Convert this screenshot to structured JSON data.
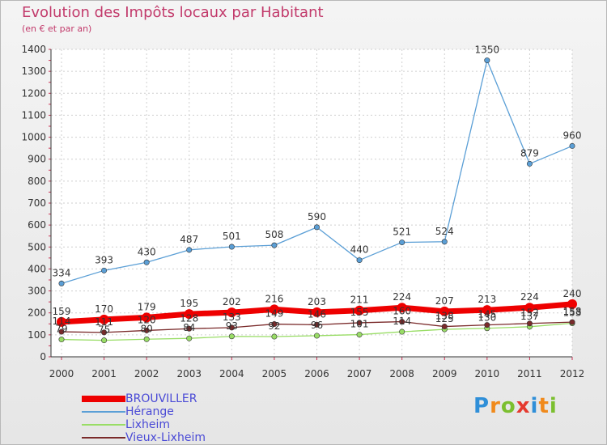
{
  "header": {
    "title": "Evolution des Impôts locaux par Habitant",
    "subtitle": "(en € et par an)"
  },
  "logo": {
    "text": "Proxiti",
    "letters": [
      "P",
      "r",
      "o",
      "x",
      "i",
      "t",
      "i"
    ],
    "colors": [
      "#2f8fd8",
      "#f08a1c",
      "#7bbf2f",
      "#e53a2f",
      "#2f8fd8",
      "#f08a1c",
      "#7bbf2f"
    ]
  },
  "chart_data": {
    "type": "line",
    "x": [
      "2000",
      "2001",
      "2002",
      "2003",
      "2004",
      "2005",
      "2006",
      "2007",
      "2008",
      "2009",
      "2010",
      "2011",
      "2012"
    ],
    "ylim": [
      0,
      1400
    ],
    "yticks": [
      0,
      100,
      200,
      300,
      400,
      500,
      600,
      700,
      800,
      900,
      1000,
      1100,
      1200,
      1300,
      1400
    ],
    "grid": true,
    "legend_position": "bottom-left",
    "series": [
      {
        "name": "BROUVILLER",
        "color": "#ee0000",
        "values": [
          159,
          170,
          179,
          195,
          202,
          216,
          203,
          211,
          224,
          207,
          213,
          224,
          240
        ],
        "labels": [
          "159",
          "170",
          "179",
          "195",
          "202",
          "216",
          "203",
          "211",
          "224",
          "207",
          "213",
          "224",
          "240"
        ]
      },
      {
        "name": "Hérange",
        "color": "#5b9fd6",
        "values": [
          334,
          393,
          430,
          487,
          501,
          508,
          590,
          440,
          521,
          524,
          1350,
          879,
          960
        ],
        "labels": [
          "334",
          "393",
          "430",
          "487",
          "501",
          "508",
          "590",
          "440",
          "521",
          "524",
          "1350",
          "879",
          "960"
        ]
      },
      {
        "name": "Lixheim",
        "color": "#99dd66",
        "values": [
          79,
          75,
          80,
          84,
          93,
          92,
          96,
          101,
          114,
          125,
          130,
          137,
          153
        ],
        "labels": [
          "79",
          "75",
          "80",
          "84",
          "93",
          "92",
          "96",
          "101",
          "114",
          "125",
          "130",
          "137",
          "153"
        ]
      },
      {
        "name": "Vieux-Lixheim",
        "color": "#7a2a2a",
        "values": [
          114,
          111,
          120,
          128,
          133,
          149,
          146,
          155,
          160,
          138,
          145,
          152,
          158
        ],
        "labels": [
          "114",
          "111",
          "120",
          "128",
          "133",
          "149",
          "146",
          "155",
          "160",
          "138",
          "145",
          "152",
          "158"
        ]
      }
    ]
  }
}
